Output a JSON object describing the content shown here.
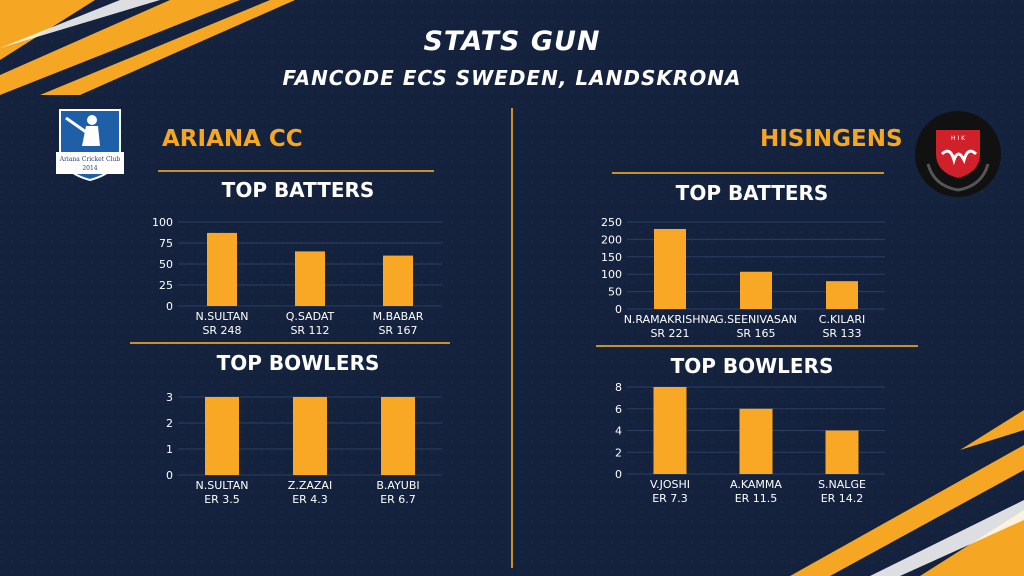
{
  "header": {
    "title": "STATS GUN",
    "subtitle": "FANCODE ECS SWEDEN, LANDSKRONA"
  },
  "teams": {
    "left": {
      "name": "ARIANA CC",
      "logo_text_1": "Ariana Cricket Club",
      "logo_text_2": "2014"
    },
    "right": {
      "name": "HISINGENS",
      "logo_text": "H I K"
    }
  },
  "colors": {
    "background": "#14223e",
    "bar": "#f9a825",
    "accent": "#f5a623",
    "rule": "#c8912a"
  },
  "chart_data": [
    {
      "id": "left-batters",
      "type": "bar",
      "title": "TOP BATTERS",
      "categories": [
        "N.SULTAN",
        "Q.SADAT",
        "M.BABAR"
      ],
      "sublabels": [
        "SR 248",
        "SR 112",
        "SR 167"
      ],
      "values": [
        87,
        65,
        60
      ],
      "yticks": [
        0,
        25,
        50,
        75,
        100
      ],
      "ylim": [
        0,
        100
      ]
    },
    {
      "id": "left-bowlers",
      "type": "bar",
      "title": "TOP BOWLERS",
      "categories": [
        "N.SULTAN",
        "Z.ZAZAI",
        "B.AYUBI"
      ],
      "sublabels": [
        "ER 3.5",
        "ER 4.3",
        "ER 6.7"
      ],
      "values": [
        3,
        3,
        3
      ],
      "yticks": [
        0,
        1,
        2,
        3
      ],
      "ylim": [
        0,
        3
      ]
    },
    {
      "id": "right-batters",
      "type": "bar",
      "title": "TOP BATTERS",
      "categories": [
        "N.RAMAKRISHNA",
        "G.SEENIVASAN",
        "C.KILARI"
      ],
      "sublabels": [
        "SR 221",
        "SR 165",
        "SR 133"
      ],
      "values": [
        230,
        107,
        80
      ],
      "yticks": [
        0,
        50,
        100,
        150,
        200,
        250
      ],
      "ylim": [
        0,
        250
      ]
    },
    {
      "id": "right-bowlers",
      "type": "bar",
      "title": "TOP BOWLERS",
      "categories": [
        "V.JOSHI",
        "A.KAMMA",
        "S.NALGE"
      ],
      "sublabels": [
        "ER 7.3",
        "ER 11.5",
        "ER 14.2"
      ],
      "values": [
        8,
        6,
        4
      ],
      "yticks": [
        0,
        2,
        4,
        6,
        8
      ],
      "ylim": [
        0,
        8
      ]
    }
  ]
}
